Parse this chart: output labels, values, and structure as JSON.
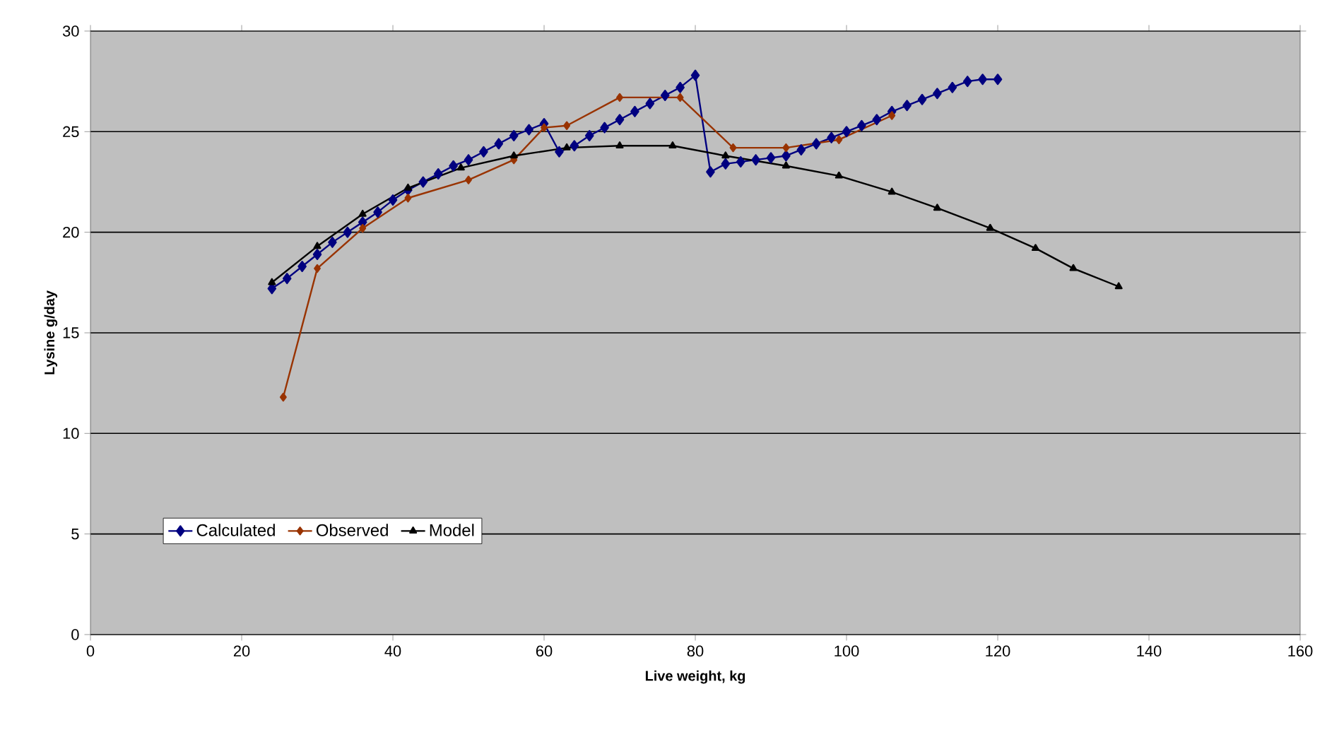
{
  "chart_data": {
    "type": "line",
    "xlabel": "Live weight, kg",
    "ylabel": "Lysine g/day",
    "xlim": [
      0,
      160
    ],
    "xticks": [
      0,
      20,
      40,
      60,
      80,
      100,
      120,
      140,
      160
    ],
    "ylim": [
      0,
      30
    ],
    "yticks": [
      0,
      5,
      10,
      15,
      20,
      25,
      30
    ],
    "grid": "y",
    "legend": "bottom left",
    "line_style": "solid",
    "series": [
      {
        "name": "Calculated",
        "color": "#000080",
        "marker": "diamond",
        "x": [
          24,
          26,
          28,
          30,
          32,
          34,
          36,
          38,
          40,
          42,
          44,
          46,
          48,
          50,
          52,
          54,
          56,
          58,
          60,
          62,
          64,
          66,
          68,
          70,
          72,
          74,
          76,
          78,
          80,
          82,
          84,
          86,
          88,
          90,
          92,
          94,
          96,
          98,
          100,
          102,
          104,
          106,
          108,
          110,
          112,
          114,
          116,
          118,
          120
        ],
        "values": [
          17.2,
          17.7,
          18.3,
          18.9,
          19.5,
          20.0,
          20.5,
          21.0,
          21.6,
          22.1,
          22.5,
          22.9,
          23.3,
          23.6,
          24.0,
          24.4,
          24.8,
          25.1,
          25.4,
          24.0,
          24.3,
          24.8,
          25.2,
          25.6,
          26.0,
          26.4,
          26.8,
          27.2,
          27.8,
          23.0,
          23.4,
          23.5,
          23.6,
          23.7,
          23.8,
          24.1,
          24.4,
          24.7,
          25.0,
          25.3,
          25.6,
          26.0,
          26.3,
          26.6,
          26.9,
          27.2,
          27.5,
          27.6,
          27.6
        ]
      },
      {
        "name": "Observed",
        "color": "#993300",
        "marker": "diamond",
        "x": [
          25.5,
          30,
          36,
          42,
          50,
          56,
          60,
          63,
          70,
          78,
          85,
          92,
          99,
          106
        ],
        "values": [
          11.8,
          18.2,
          20.2,
          21.7,
          22.6,
          23.6,
          25.2,
          25.3,
          26.7,
          26.7,
          24.2,
          24.2,
          24.6,
          25.8
        ]
      },
      {
        "name": "Model",
        "color": "#000000",
        "marker": "triangle",
        "x": [
          24,
          30,
          36,
          42,
          49,
          56,
          63,
          70,
          77,
          84,
          92,
          99,
          106,
          112,
          119,
          125,
          130,
          136
        ],
        "values": [
          17.5,
          19.3,
          20.9,
          22.2,
          23.2,
          23.8,
          24.2,
          24.3,
          24.3,
          23.8,
          23.3,
          22.8,
          22.0,
          21.2,
          20.2,
          19.2,
          18.2,
          17.3
        ]
      }
    ]
  }
}
